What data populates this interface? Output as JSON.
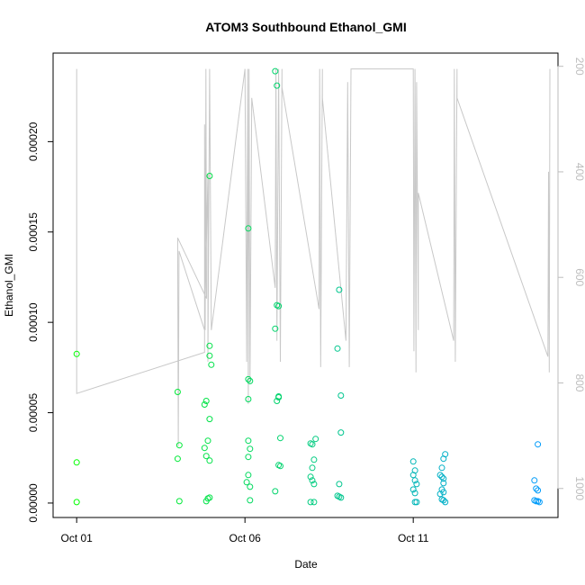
{
  "chart_data": {
    "type": "scatter",
    "title": "ATOM3 Southbound Ethanol_GMI",
    "xlabel": "Date",
    "ylabel": "Ethanol_GMI",
    "x_unit": "days since Oct 01",
    "xlim": [
      -0.7,
      14.3
    ],
    "ylim": [
      -8e-06,
      0.000249
    ],
    "y2lim": [
      1055,
      175
    ],
    "x_ticks": [
      0,
      5,
      10
    ],
    "x_tick_labels": [
      "Oct 01",
      "Oct 06",
      "Oct 11"
    ],
    "y_ticks": [
      0.0,
      5e-05,
      0.0001,
      0.00015,
      0.0002
    ],
    "y_tick_labels": [
      "0.00000",
      "0.00005",
      "0.00010",
      "0.00015",
      "0.00020"
    ],
    "y2_ticks": [
      200,
      400,
      600,
      800,
      1000
    ],
    "y2_tick_labels": [
      "200",
      "400",
      "600",
      "800",
      "1000"
    ],
    "marker_color_range": [
      "#00ff00",
      "#0099ff"
    ],
    "altitude_line_color": "#c8c8c8",
    "points": [
      [
        0.0,
        8.25e-05
      ],
      [
        0.0,
        2.25e-05
      ],
      [
        0.0,
        5e-07
      ],
      [
        3.0,
        6.15e-05
      ],
      [
        3.05,
        3.2e-05
      ],
      [
        3.0,
        2.45e-05
      ],
      [
        3.05,
        1e-06
      ],
      [
        3.8,
        3.05e-05
      ],
      [
        3.8,
        5.45e-05
      ],
      [
        3.85,
        5.65e-05
      ],
      [
        3.9,
        3.45e-05
      ],
      [
        3.85,
        2.6e-05
      ],
      [
        3.85,
        1e-06
      ],
      [
        3.9,
        2.5e-06
      ],
      [
        3.95,
        8.7e-05
      ],
      [
        3.95,
        8.15e-05
      ],
      [
        4.0,
        7.65e-05
      ],
      [
        3.95,
        4.65e-05
      ],
      [
        3.95,
        2.35e-05
      ],
      [
        3.95,
        3e-06
      ],
      [
        3.95,
        0.000181
      ],
      [
        5.05,
        1.15e-05
      ],
      [
        5.1,
        6.85e-05
      ],
      [
        5.15,
        6.75e-05
      ],
      [
        5.1,
        5.75e-05
      ],
      [
        5.1,
        3.45e-05
      ],
      [
        5.15,
        3e-05
      ],
      [
        5.1,
        2.55e-05
      ],
      [
        5.1,
        1.55e-05
      ],
      [
        5.15,
        9e-06
      ],
      [
        5.15,
        1.5e-06
      ],
      [
        5.1,
        0.000152
      ],
      [
        5.9,
        0.000239
      ],
      [
        5.95,
        0.000231
      ],
      [
        5.9,
        9.65e-05
      ],
      [
        5.95,
        0.0001095
      ],
      [
        6.0,
        0.000109
      ],
      [
        6.0,
        5.9e-05
      ],
      [
        5.95,
        5.65e-05
      ],
      [
        6.0,
        5.85e-05
      ],
      [
        6.05,
        3.6e-05
      ],
      [
        6.0,
        2.1e-05
      ],
      [
        6.05,
        2.05e-05
      ],
      [
        5.9,
        6.5e-06
      ],
      [
        6.95,
        3.3e-05
      ],
      [
        7.0,
        3.25e-05
      ],
      [
        7.05,
        2.4e-05
      ],
      [
        7.1,
        3.55e-05
      ],
      [
        7.0,
        1.95e-05
      ],
      [
        6.95,
        1.45e-05
      ],
      [
        7.0,
        1.25e-05
      ],
      [
        7.05,
        1.05e-05
      ],
      [
        6.95,
        5e-07
      ],
      [
        7.05,
        5e-07
      ],
      [
        7.75,
        8.55e-05
      ],
      [
        7.8,
        0.000118
      ],
      [
        7.85,
        5.95e-05
      ],
      [
        7.85,
        3.9e-05
      ],
      [
        7.8,
        1.05e-05
      ],
      [
        7.75,
        4e-06
      ],
      [
        7.8,
        3.5e-06
      ],
      [
        7.85,
        3e-06
      ],
      [
        10.0,
        2.3e-05
      ],
      [
        10.05,
        1.8e-05
      ],
      [
        10.0,
        1.55e-05
      ],
      [
        10.05,
        1.25e-05
      ],
      [
        10.1,
        1.05e-05
      ],
      [
        10.0,
        7.5e-06
      ],
      [
        10.05,
        5.5e-06
      ],
      [
        10.05,
        5e-07
      ],
      [
        10.1,
        5e-07
      ],
      [
        10.8,
        1.55e-05
      ],
      [
        10.85,
        1.45e-05
      ],
      [
        10.9,
        1.35e-05
      ],
      [
        10.9,
        1.1e-05
      ],
      [
        10.85,
        7.5e-06
      ],
      [
        10.8,
        5e-06
      ],
      [
        10.9,
        6e-06
      ],
      [
        10.85,
        2e-06
      ],
      [
        10.9,
        1.5e-06
      ],
      [
        10.95,
        5e-07
      ],
      [
        10.85,
        1.95e-05
      ],
      [
        10.9,
        2.45e-05
      ],
      [
        10.95,
        2.7e-05
      ],
      [
        13.7,
        3.25e-05
      ],
      [
        13.6,
        1.25e-05
      ],
      [
        13.65,
        8e-06
      ],
      [
        13.7,
        7e-06
      ],
      [
        13.6,
        1.5e-06
      ],
      [
        13.65,
        1e-06
      ],
      [
        13.7,
        1e-06
      ],
      [
        13.75,
        5e-07
      ]
    ],
    "altitude_line": [
      [
        0.0,
        205
      ],
      [
        0.0,
        820
      ],
      [
        3.8,
        742
      ],
      [
        3.8,
        310
      ],
      [
        3.82,
        700
      ],
      [
        3.84,
        205
      ],
      [
        3.86,
        640
      ],
      [
        3.0,
        525
      ],
      [
        3.02,
        920
      ],
      [
        3.04,
        550
      ],
      [
        3.8,
        700
      ],
      [
        3.9,
        405
      ],
      [
        3.9,
        760
      ],
      [
        3.95,
        205
      ],
      [
        4.0,
        700
      ],
      [
        5.0,
        205
      ],
      [
        5.05,
        760
      ],
      [
        5.08,
        205
      ],
      [
        5.1,
        840
      ],
      [
        5.12,
        205
      ],
      [
        5.15,
        800
      ],
      [
        5.2,
        260
      ],
      [
        5.9,
        620
      ],
      [
        5.92,
        205
      ],
      [
        5.95,
        720
      ],
      [
        6.0,
        205
      ],
      [
        6.05,
        760
      ],
      [
        6.1,
        205
      ],
      [
        6.1,
        240
      ],
      [
        7.2,
        660
      ],
      [
        7.22,
        205
      ],
      [
        7.25,
        770
      ],
      [
        7.3,
        205
      ],
      [
        7.3,
        260
      ],
      [
        8.0,
        720
      ],
      [
        8.05,
        230
      ],
      [
        8.1,
        770
      ],
      [
        8.15,
        205
      ],
      [
        10.0,
        205
      ],
      [
        10.02,
        740
      ],
      [
        10.05,
        205
      ],
      [
        10.08,
        780
      ],
      [
        10.1,
        230
      ],
      [
        10.15,
        700
      ],
      [
        10.15,
        440
      ],
      [
        11.2,
        720
      ],
      [
        11.22,
        205
      ],
      [
        11.25,
        760
      ],
      [
        11.3,
        205
      ],
      [
        11.3,
        260
      ],
      [
        14.0,
        750
      ],
      [
        14.02,
        400
      ],
      [
        14.04,
        780
      ],
      [
        14.06,
        205
      ]
    ]
  }
}
